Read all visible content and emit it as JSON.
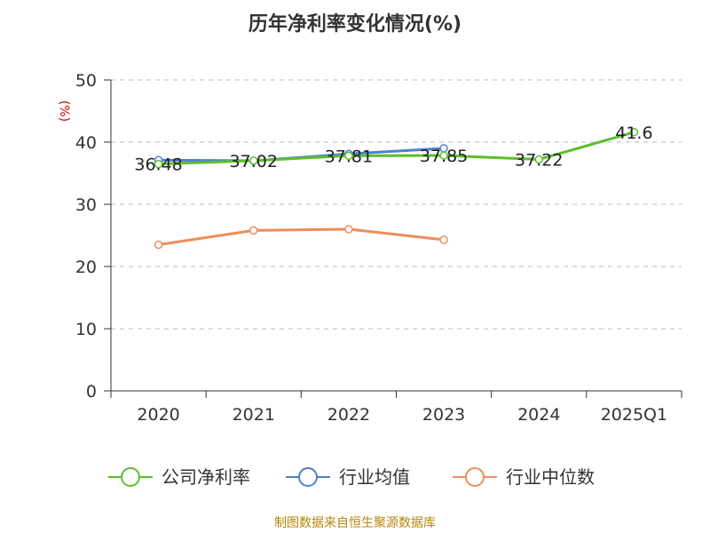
{
  "chart_data": {
    "type": "line",
    "title": "历年净利率变化情况(%)",
    "ylabel": "(%)",
    "xlabel": "",
    "categories": [
      "2020",
      "2021",
      "2022",
      "2023",
      "2024",
      "2025Q1"
    ],
    "ylim": [
      0,
      50
    ],
    "yticks": [
      0,
      10,
      20,
      30,
      40,
      50
    ],
    "grid": true,
    "legend_position": "bottom",
    "series": [
      {
        "name": "公司净利率",
        "color": "#5cbf2a",
        "values": [
          36.48,
          37.02,
          37.81,
          37.85,
          37.22,
          41.6
        ],
        "labels": [
          "36.48",
          "37.02",
          "37.81",
          "37.85",
          "37.22",
          "41.6"
        ]
      },
      {
        "name": "行业均值",
        "color": "#4f7fd6",
        "values": [
          37.1,
          37.0,
          38.1,
          39.0,
          null,
          null
        ]
      },
      {
        "name": "行业中位数",
        "color": "#f08c5a",
        "values": [
          23.5,
          25.8,
          26.0,
          24.3,
          null,
          null
        ]
      }
    ]
  },
  "source": "制图数据来自恒生聚源数据库"
}
